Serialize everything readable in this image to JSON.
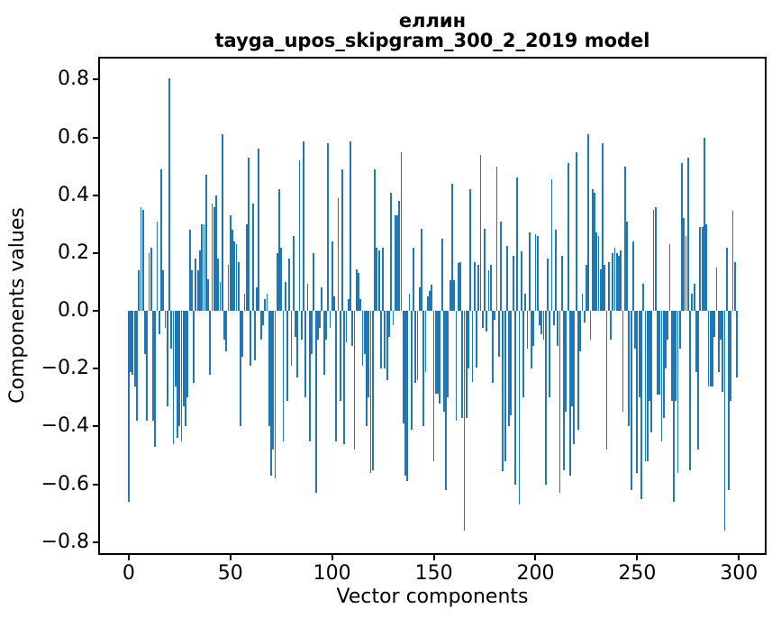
{
  "chart_data": {
    "type": "bar",
    "title": "еллин",
    "subtitle": "tayga_upos_skipgram_300_2_2019 model",
    "xlabel": "Vector components",
    "ylabel": "Components values",
    "x_ticks": [
      0,
      50,
      100,
      150,
      200,
      250,
      300
    ],
    "y_ticks": [
      0.8,
      0.6,
      0.4,
      0.2,
      0.0,
      -0.2,
      -0.4,
      -0.6,
      -0.8
    ],
    "xlim": [
      -15.0,
      313.6
    ],
    "ylim": [
      -0.844,
      0.879
    ],
    "grid": false,
    "legend": false,
    "bar_color": "#1f77b4",
    "axis_color": "#000000",
    "background_color": "#ffffff",
    "n_components": 300,
    "values": [
      -0.66,
      -0.21,
      -0.22,
      -0.26,
      -0.38,
      0.14,
      0.36,
      0.35,
      -0.15,
      -0.38,
      0.2,
      0.22,
      -0.38,
      -0.47,
      0.31,
      -0.08,
      0.49,
      0.14,
      -0.06,
      -0.33,
      0.805,
      -0.13,
      -0.46,
      -0.26,
      -0.44,
      -0.4,
      -0.45,
      -0.33,
      -0.4,
      -0.3,
      0.28,
      0.14,
      -0.25,
      0.18,
      0.14,
      0.21,
      0.3,
      0.3,
      0.47,
      0.11,
      -0.22,
      0.37,
      0.36,
      0.4,
      0.18,
      0.1,
      0.61,
      -0.1,
      -0.14,
      0.16,
      0.33,
      0.28,
      0.24,
      0.23,
      0.17,
      -0.4,
      -0.16,
      0.06,
      0.3,
      0.53,
      -0.19,
      0.37,
      -0.17,
      0.08,
      0.56,
      -0.1,
      -0.05,
      0.04,
      0.06,
      -0.4,
      -0.57,
      -0.48,
      -0.58,
      0.2,
      0.42,
      0.22,
      -0.45,
      0.1,
      -0.31,
      0.18,
      -0.19,
      0.26,
      -0.09,
      -0.23,
      0.52,
      -0.1,
      0.585,
      -0.3,
      0.095,
      -0.45,
      -0.15,
      0.2,
      -0.63,
      -0.1,
      -0.06,
      0.08,
      -0.22,
      -0.1,
      0.58,
      -0.06,
      0.24,
      0.05,
      -0.45,
      0.39,
      -0.31,
      0.49,
      -0.46,
      -0.11,
      0.04,
      0.585,
      -0.12,
      -0.48,
      0.145,
      0.13,
      0.04,
      -0.19,
      -0.15,
      -0.4,
      -0.3,
      -0.56,
      -0.55,
      0.49,
      0.22,
      0.21,
      -0.2,
      0.22,
      -0.2,
      -0.24,
      -0.09,
      0.41,
      -0.05,
      0.33,
      0.33,
      0.38,
      0.55,
      -0.39,
      -0.57,
      -0.59,
      0.06,
      -0.41,
      0.22,
      -0.25,
      -0.24,
      0.08,
      0.285,
      -0.4,
      -0.21,
      0.05,
      0.07,
      0.09,
      -0.52,
      -0.285,
      -0.285,
      -0.32,
      0.25,
      -0.35,
      -0.62,
      -0.3,
      0.105,
      0.44,
      0.105,
      -0.38,
      0.165,
      0.17,
      -0.37,
      -0.76,
      -0.37,
      -0.2,
      0.42,
      -0.245,
      0.17,
      -0.195,
      0.16,
      0.54,
      -0.06,
      0.285,
      -0.07,
      0.14,
      0.16,
      -0.25,
      -0.03,
      0.5,
      -0.16,
      0.31,
      -0.555,
      -0.52,
      0.225,
      -0.4,
      -0.36,
      0.19,
      -0.6,
      0.46,
      -0.67,
      0.205,
      -0.3,
      0.06,
      -0.13,
      0.27,
      -0.2,
      -0.12,
      0.265,
      0.26,
      -0.05,
      -0.08,
      -0.1,
      -0.6,
      0.18,
      -0.3,
      0.455,
      -0.05,
      0.28,
      -0.12,
      -0.63,
      0.19,
      -0.55,
      -0.35,
      0.512,
      -0.57,
      -0.33,
      -0.46,
      0.55,
      -0.41,
      -0.14,
      0.06,
      -0.04,
      0.16,
      0.61,
      -0.1,
      0.42,
      0.41,
      0.27,
      0.26,
      0.145,
      0.58,
      0.16,
      -0.48,
      0.17,
      -0.1,
      0.2,
      0.22,
      0.2,
      0.19,
      0.21,
      -0.35,
      0.5,
      0.31,
      -0.4,
      -0.62,
      0.24,
      -0.13,
      -0.56,
      -0.3,
      -0.65,
      0.095,
      -0.52,
      -0.52,
      -0.31,
      -0.42,
      0.35,
      0.36,
      -0.29,
      -0.29,
      -0.45,
      -0.37,
      -0.2,
      -0.1,
      0.23,
      -0.31,
      -0.66,
      -0.31,
      -0.56,
      -0.13,
      0.51,
      0.32,
      0.26,
      0.53,
      -0.55,
      0.06,
      0.095,
      -0.21,
      -0.48,
      0.29,
      0.29,
      0.6,
      0.3,
      -0.26,
      -0.26,
      -0.26,
      -0.09,
      0.15,
      -0.21,
      -0.1,
      -0.28,
      -0.76,
      0.22,
      -0.62,
      -0.31,
      0.345,
      0.17,
      -0.23
    ]
  }
}
